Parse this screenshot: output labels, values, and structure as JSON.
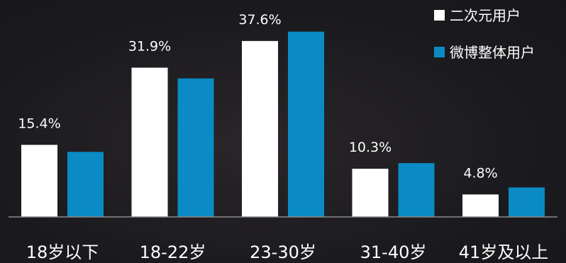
{
  "chart_data": {
    "type": "bar",
    "title": "",
    "xlabel": "",
    "ylabel": "",
    "ylim": [
      0,
      40
    ],
    "grid": false,
    "legend_position": "top-right",
    "categories": [
      "18岁以下",
      "18-22岁",
      "23-30岁",
      "31-40岁",
      "41岁及以上"
    ],
    "series": [
      {
        "name": "二次元用户",
        "color": "#ffffff",
        "values": [
          15.4,
          31.9,
          37.6,
          10.3,
          4.8
        ],
        "labels": [
          "15.4%",
          "31.9%",
          "37.6%",
          "10.3%",
          "4.8%"
        ]
      },
      {
        "name": "微博整体用户",
        "color": "#0a8bc3",
        "values": [
          13.9,
          29.6,
          39.6,
          11.5,
          6.3
        ]
      }
    ]
  }
}
